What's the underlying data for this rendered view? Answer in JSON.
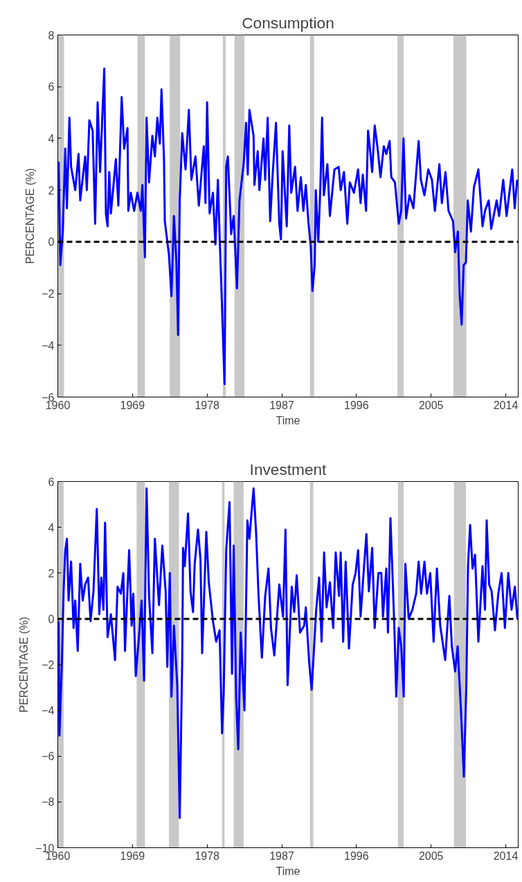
{
  "chart_data": [
    {
      "type": "line",
      "title": "Consumption",
      "xlabel": "Time",
      "ylabel": "PERCENTAGE (%)",
      "xlim": [
        1960,
        2015.5
      ],
      "xticks": [
        1960,
        1969,
        1978,
        1987,
        1996,
        2005,
        2014
      ],
      "ylim": [
        -6,
        8
      ],
      "yticks": [
        -6,
        -4,
        -2,
        0,
        2,
        4,
        6,
        8
      ],
      "ref_lines": [
        {
          "axis": "y",
          "value": 0,
          "color": "#000000",
          "line_style": "dashed"
        }
      ],
      "bands": [
        {
          "axis": "x",
          "from": 1960,
          "to": 1960.75,
          "color": "#c8c8c8"
        },
        {
          "axis": "x",
          "from": 1969.6,
          "to": 1970.5,
          "color": "#c8c8c8"
        },
        {
          "axis": "x",
          "from": 1973.5,
          "to": 1974.75,
          "color": "#c8c8c8"
        },
        {
          "axis": "x",
          "from": 1979.9,
          "to": 1980.25,
          "color": "#c8c8c8"
        },
        {
          "axis": "x",
          "from": 1981.3,
          "to": 1982.5,
          "color": "#c8c8c8"
        },
        {
          "axis": "x",
          "from": 1990.4,
          "to": 1990.9,
          "color": "#c8c8c8"
        },
        {
          "axis": "x",
          "from": 2000.95,
          "to": 2001.7,
          "color": "#c8c8c8"
        },
        {
          "axis": "x",
          "from": 2007.7,
          "to": 2009.25,
          "color": "#c8c8c8"
        }
      ],
      "series": [
        {
          "color": "#0000ff",
          "x": [
            1960.1,
            1960.3,
            1960.6,
            1960.9,
            1961.1,
            1961.4,
            1961.6,
            1962.1,
            1962.5,
            1962.7,
            1963.3,
            1963.5,
            1963.8,
            1964.2,
            1964.5,
            1964.8,
            1965.1,
            1965.6,
            1965.8,
            1966.0,
            1966.2,
            1966.4,
            1967.0,
            1967.3,
            1967.7,
            1968.0,
            1968.4,
            1968.5,
            1968.8,
            1969.2,
            1969.6,
            1970.0,
            1970.2,
            1970.5,
            1970.7,
            1971.0,
            1971.4,
            1971.7,
            1972.0,
            1972.3,
            1972.5,
            1972.8,
            1972.9,
            1973.4,
            1973.7,
            1974.0,
            1974.3,
            1974.5,
            1974.7,
            1975.0,
            1975.4,
            1975.8,
            1976.1,
            1976.6,
            1977.0,
            1977.6,
            1977.8,
            1978.0,
            1978.3,
            1978.7,
            1979.0,
            1979.3,
            1979.5,
            1979.7,
            1980.1,
            1980.3,
            1980.5,
            1980.9,
            1981.2,
            1981.6,
            1981.9,
            1982.4,
            1982.7,
            1982.9,
            1983.1,
            1983.6,
            1983.7,
            1984.1,
            1984.3,
            1984.8,
            1985.0,
            1985.3,
            1985.6,
            1985.9,
            1986.3,
            1986.7,
            1986.9,
            1987.1,
            1987.6,
            1987.9,
            1988.14,
            1988.6,
            1988.9,
            1989.3,
            1989.6,
            1989.9,
            1990.2,
            1990.5,
            1990.7,
            1990.97,
            1991.1,
            1991.4,
            1991.65,
            1991.86,
            1992.07,
            1992.5,
            1992.8,
            1993.35,
            1993.86,
            1994.1,
            1994.5,
            1994.9,
            1995.2,
            1995.7,
            1996.2,
            1996.5,
            1996.77,
            1997.16,
            1997.4,
            1997.6,
            1997.9,
            1998.2,
            1998.56,
            1998.9,
            1999.3,
            1999.6,
            2000.0,
            2000.2,
            2000.64,
            2001.1,
            2001.4,
            2001.68,
            2001.98,
            2002.4,
            2002.87,
            2003.5,
            2003.77,
            2004.2,
            2004.66,
            2005.1,
            2005.46,
            2006.0,
            2006.3,
            2006.74,
            2007.1,
            2007.64,
            2007.9,
            2008.23,
            2008.44,
            2008.68,
            2008.92,
            2009.2,
            2009.42,
            2009.8,
            2010.16,
            2010.7,
            2011.2,
            2011.5,
            2011.95,
            2012.25,
            2012.9,
            2013.2,
            2013.7,
            2014.1,
            2014.78,
            2015.08,
            2015.37
          ],
          "values": [
            3.1,
            -0.9,
            0.4,
            3.6,
            1.3,
            4.8,
            2.9,
            2.0,
            3.4,
            1.6,
            3.3,
            2.0,
            4.7,
            4.3,
            0.7,
            5.4,
            2.7,
            6.7,
            1.1,
            0.6,
            2.7,
            1.1,
            3.2,
            1.4,
            5.6,
            3.6,
            4.4,
            1.2,
            1.9,
            1.2,
            1.9,
            1.2,
            2.2,
            -0.6,
            4.8,
            2.3,
            4.1,
            3.3,
            4.8,
            3.8,
            5.9,
            3.2,
            0.8,
            -0.5,
            -2.1,
            1.0,
            -0.8,
            -3.6,
            1.6,
            4.2,
            2.8,
            5.1,
            2.4,
            3.3,
            1.4,
            3.7,
            1.5,
            5.4,
            1.1,
            1.9,
            -0.1,
            2.4,
            0.3,
            -1.6,
            -5.5,
            2.9,
            3.3,
            0.3,
            1.0,
            -1.8,
            1.6,
            3.0,
            4.6,
            2.6,
            5.1,
            4.1,
            2.2,
            3.5,
            2.0,
            4.0,
            2.4,
            4.8,
            0.8,
            2.6,
            4.6,
            0.7,
            0.1,
            3.5,
            0.6,
            4.5,
            1.9,
            2.9,
            1.2,
            2.5,
            1.2,
            2.2,
            0.8,
            -0.2,
            -1.9,
            -0.9,
            2.0,
            0.0,
            2.1,
            4.8,
            1.8,
            3.0,
            1.0,
            2.8,
            2.9,
            2.0,
            2.7,
            0.7,
            2.3,
            1.9,
            2.8,
            1.5,
            2.6,
            1.2,
            4.3,
            3.7,
            2.7,
            4.5,
            3.6,
            2.5,
            3.7,
            3.4,
            3.9,
            2.5,
            2.3,
            0.7,
            1.2,
            4.0,
            0.9,
            1.8,
            1.3,
            3.9,
            2.4,
            1.8,
            2.8,
            2.4,
            1.2,
            3.0,
            1.5,
            2.7,
            1.2,
            0.8,
            -0.4,
            0.4,
            -2.0,
            -3.2,
            -0.9,
            -0.8,
            1.6,
            0.4,
            2.1,
            2.8,
            0.6,
            1.2,
            1.6,
            0.5,
            1.6,
            1.0,
            2.4,
            1.0,
            2.8,
            1.3,
            2.4
          ]
        }
      ]
    },
    {
      "type": "line",
      "title": "Investment",
      "xlabel": "Time",
      "ylabel": "PERCENTAGE (%)",
      "xlim": [
        1960,
        2015.5
      ],
      "xticks": [
        1960,
        1969,
        1978,
        1987,
        1996,
        2005,
        2014
      ],
      "ylim": [
        -10,
        6
      ],
      "yticks": [
        -10,
        -8,
        -6,
        -4,
        -2,
        0,
        2,
        4,
        6
      ],
      "ref_lines": [
        {
          "axis": "y",
          "value": 0,
          "color": "#000000",
          "line_style": "dashed"
        }
      ],
      "bands": [
        {
          "axis": "x",
          "from": 1960,
          "to": 1960.7,
          "color": "#c8c8c8"
        },
        {
          "axis": "x",
          "from": 1969.5,
          "to": 1970.5,
          "color": "#c8c8c8"
        },
        {
          "axis": "x",
          "from": 1973.4,
          "to": 1974.6,
          "color": "#c8c8c8"
        },
        {
          "axis": "x",
          "from": 1979.8,
          "to": 1980.1,
          "color": "#c8c8c8"
        },
        {
          "axis": "x",
          "from": 1981.2,
          "to": 1982.4,
          "color": "#c8c8c8"
        },
        {
          "axis": "x",
          "from": 1990.4,
          "to": 1990.8,
          "color": "#c8c8c8"
        },
        {
          "axis": "x",
          "from": 2001.0,
          "to": 2001.7,
          "color": "#c8c8c8"
        },
        {
          "axis": "x",
          "from": 2007.75,
          "to": 2009.2,
          "color": "#c8c8c8"
        }
      ],
      "series": [
        {
          "color": "#0000ff",
          "x": [
            1960.1,
            1960.2,
            1960.5,
            1960.7,
            1960.9,
            1961.1,
            1961.3,
            1961.6,
            1961.9,
            1962.1,
            1962.4,
            1962.7,
            1963.0,
            1963.3,
            1963.65,
            1963.95,
            1964.3,
            1964.7,
            1965.0,
            1965.25,
            1965.5,
            1965.7,
            1966.0,
            1966.4,
            1966.9,
            1967.2,
            1967.6,
            1967.9,
            1968.1,
            1968.6,
            1968.9,
            1969.1,
            1969.4,
            1969.8,
            1970.1,
            1970.4,
            1970.7,
            1971.0,
            1971.4,
            1971.7,
            1972.2,
            1972.6,
            1973.0,
            1973.2,
            1973.5,
            1973.7,
            1974.0,
            1974.4,
            1974.7,
            1975.0,
            1975.1,
            1975.3,
            1975.7,
            1976.0,
            1976.3,
            1976.5,
            1976.9,
            1977.2,
            1977.4,
            1977.9,
            1978.2,
            1978.7,
            1979.1,
            1979.5,
            1979.8,
            1980.0,
            1980.3,
            1980.7,
            1981.0,
            1981.2,
            1981.5,
            1981.75,
            1982.05,
            1982.5,
            1982.85,
            1983.1,
            1983.6,
            1983.9,
            1984.2,
            1984.6,
            1985.0,
            1985.4,
            1985.7,
            1986.1,
            1986.7,
            1987.15,
            1987.45,
            1987.7,
            1988.2,
            1988.5,
            1988.8,
            1989.2,
            1989.7,
            1989.9,
            1990.3,
            1990.6,
            1990.9,
            1991.15,
            1991.5,
            1991.8,
            1992.1,
            1992.4,
            1992.8,
            1993.2,
            1993.5,
            1993.9,
            1994.1,
            1994.4,
            1994.7,
            1995.1,
            1995.55,
            1995.9,
            1996.2,
            1996.5,
            1996.9,
            1997.2,
            1997.5,
            1997.9,
            1998.2,
            1998.65,
            1999.0,
            1999.2,
            1999.6,
            1999.8,
            2000.1,
            2000.4,
            2000.6,
            2000.8,
            2001.1,
            2001.4,
            2001.7,
            2001.9,
            2002.3,
            2002.75,
            2003.2,
            2003.5,
            2003.8,
            2004.2,
            2004.5,
            2004.9,
            2005.3,
            2005.7,
            2006.1,
            2006.7,
            2007.2,
            2007.5,
            2007.9,
            2008.2,
            2008.6,
            2008.95,
            2009.25,
            2009.45,
            2009.7,
            2010.0,
            2010.3,
            2010.7,
            2011.2,
            2011.5,
            2011.7,
            2012.0,
            2012.3,
            2012.7,
            2013.1,
            2013.5,
            2013.9,
            2014.3,
            2014.7,
            2015.1,
            2015.4
          ],
          "values": [
            -0.1,
            -5.1,
            -1.8,
            1.2,
            3.0,
            3.5,
            0.8,
            2.5,
            -0.4,
            0.8,
            -1.4,
            2.4,
            0.8,
            1.5,
            1.8,
            -0.1,
            1.2,
            4.8,
            0.2,
            1.8,
            0.4,
            4.2,
            -0.8,
            0.2,
            -1.8,
            1.4,
            1.1,
            2.0,
            -1.4,
            3.0,
            -0.3,
            1.1,
            -2.5,
            -0.7,
            0.8,
            -2.7,
            5.7,
            1.0,
            -1.5,
            3.5,
            0.6,
            3.2,
            1.2,
            -2.1,
            2.0,
            -3.4,
            -0.3,
            -2.9,
            -8.7,
            -1.7,
            3.1,
            2.3,
            4.6,
            1.2,
            0.3,
            2.4,
            3.9,
            2.6,
            -1.5,
            3.8,
            1.6,
            -0.1,
            -1.0,
            -0.5,
            -5.0,
            -3.2,
            3.0,
            5.1,
            -2.4,
            3.2,
            -3.4,
            -5.7,
            -0.6,
            -4.0,
            4.3,
            3.5,
            5.7,
            3.8,
            1.0,
            -1.7,
            1.0,
            2.2,
            -0.4,
            -1.6,
            1.5,
            0.1,
            3.9,
            -2.9,
            1.4,
            0.3,
            1.9,
            -0.6,
            -0.3,
            0.5,
            -1.9,
            -3.1,
            -1.2,
            0.4,
            1.8,
            -1.0,
            2.9,
            0.5,
            1.6,
            -0.4,
            2.9,
            1.0,
            2.9,
            -1.0,
            2.5,
            -1.3,
            1.5,
            2.0,
            3.0,
            0.1,
            2.2,
            3.7,
            1.2,
            3.1,
            -0.4,
            2.0,
            2.0,
            0.1,
            2.2,
            -0.6,
            4.4,
            1.4,
            -0.7,
            -3.4,
            -0.4,
            -1.2,
            -3.4,
            2.4,
            0.0,
            0.4,
            1.1,
            2.5,
            1.1,
            2.5,
            1.1,
            2.0,
            -1.0,
            2.2,
            -0.3,
            -1.8,
            1.0,
            -1.2,
            -2.3,
            -1.2,
            -4.0,
            -6.9,
            -2.9,
            2.3,
            4.1,
            2.2,
            2.8,
            -1.0,
            2.3,
            0.4,
            4.3,
            1.5,
            1.2,
            -0.5,
            1.1,
            2.0,
            -0.4,
            2.0,
            0.4,
            1.4,
            0.0
          ]
        }
      ]
    }
  ]
}
